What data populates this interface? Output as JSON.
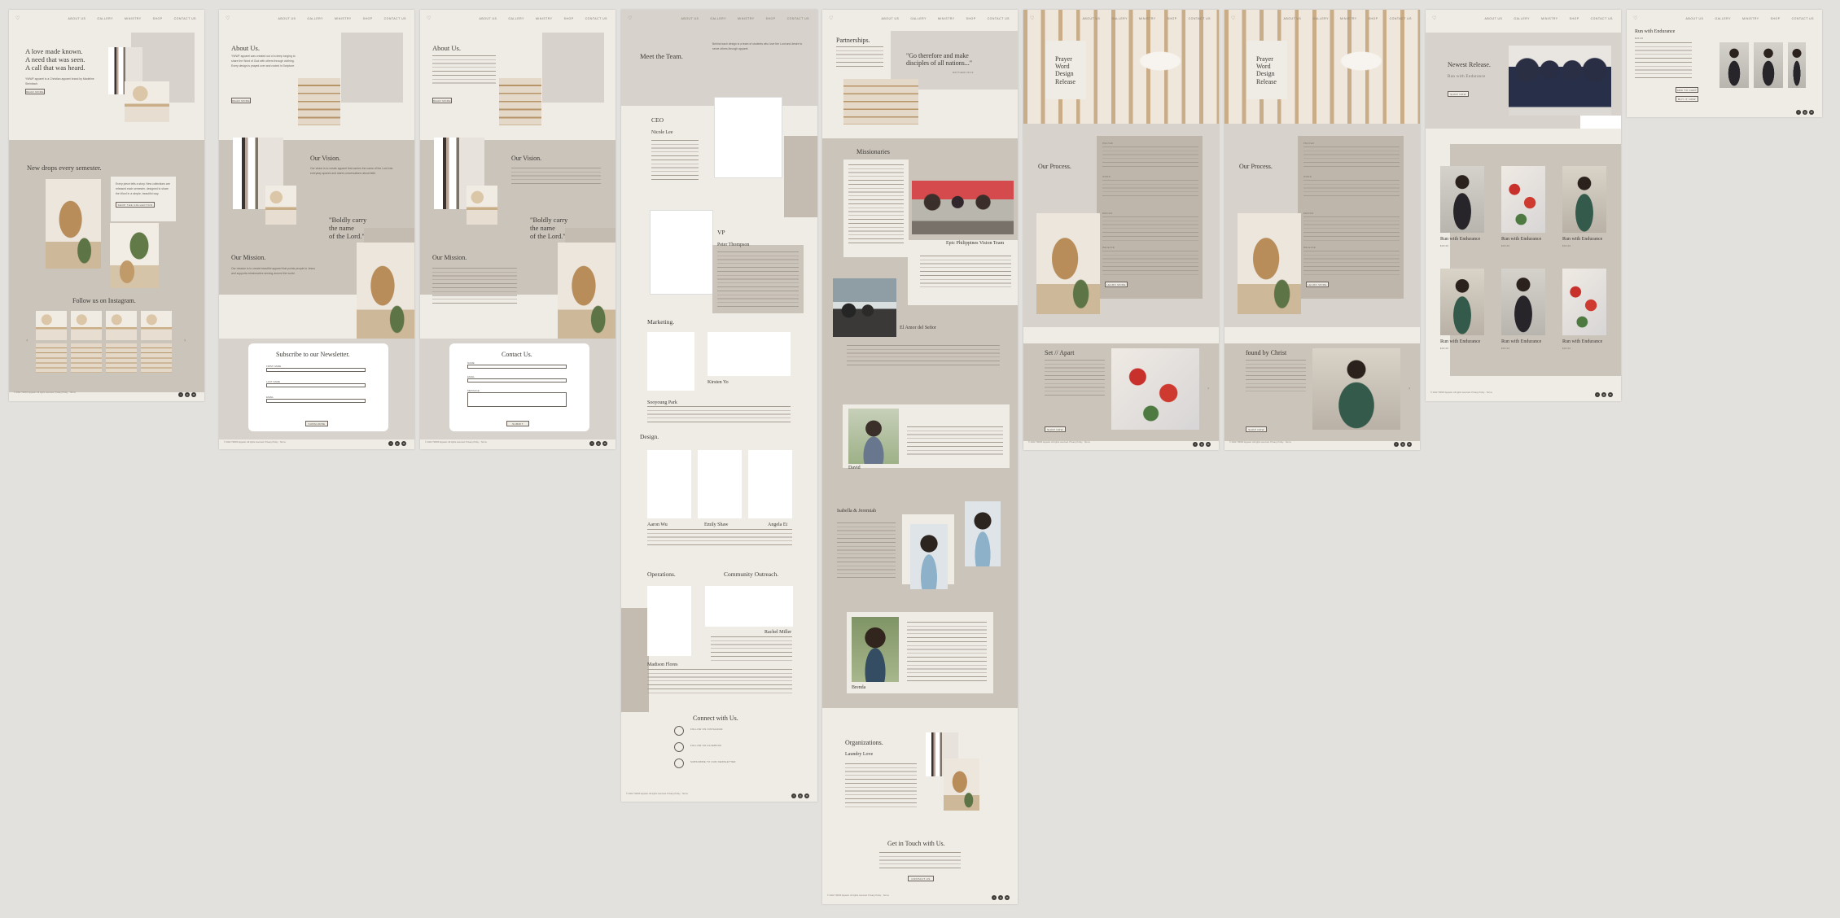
{
  "nav": {
    "logo": "♡",
    "items": [
      "ABOUT US",
      "GALLERY",
      "MINISTRY",
      "SHOP",
      "CONTACT US"
    ]
  },
  "pages": {
    "home": {
      "hero_title": "A love made known.\nA need that was seen.\nA call that was heard.",
      "hero_body": "YWWF apparel is a Christian apparel brand by Madeline Steinbach.",
      "hero_button": "READ MORE",
      "drops_title": "New drops every semester.",
      "drops_body": "Every piece tells a story. New collections are released each semester, designed to share the Word in a simple, beautiful way.",
      "drops_button": "SHOP THE COLLECTION",
      "instagram_title": "Follow us on Instagram."
    },
    "about": {
      "title": "About Us.",
      "body": "YWWF apparel was created out of a deep longing to share the Word of God with others through clothing. Every design is prayed over and rooted in Scripture.",
      "button": "READ MORE",
      "vision_title": "Our Vision.",
      "vision_body": "Our vision is to create apparel that carries the name of the Lord into everyday spaces and starts conversations about faith.",
      "quote": "\"Boldly carry\nthe name\nof the Lord.\"",
      "mission_title": "Our Mission.",
      "mission_body": "Our mission is to create beautiful apparel that points people to Jesus and supports missionaries serving around the world.",
      "newsletter_title": "Subscribe to our Newsletter.",
      "newsletter_fields": [
        "FIRST NAME",
        "LAST NAME",
        "EMAIL"
      ],
      "newsletter_button": "SUBSCRIBE"
    },
    "about_contact": {
      "title": "About Us.",
      "vision_title": "Our Vision.",
      "quote": "\"Boldly carry\nthe name\nof the Lord.\"",
      "mission_title": "Our Mission.",
      "contact_title": "Contact Us.",
      "contact_fields": [
        "NAME",
        "EMAIL",
        "MESSAGE"
      ],
      "contact_button": "SUBMIT"
    },
    "team": {
      "title": "Meet the Team.",
      "intro": "Behind each design is a team of students who love the Lord and desire to serve others through apparel.",
      "ceo_label": "CEO",
      "ceo_name": "Nicole Lee",
      "vp_label": "VP",
      "vp_name": "Peter Thompson",
      "marketing_label": "Marketing.",
      "marketing_names": [
        "Sooyoung Park",
        "Kirsten Yo"
      ],
      "design_label": "Design.",
      "design_names": [
        "Aaron Wu",
        "Emily Shaw",
        "Angela Ei"
      ],
      "operations_label": "Operations.",
      "outreach_label": "Community Outreach.",
      "ops_names": [
        "Madison Flores",
        "Rachel Miller"
      ],
      "connect_title": "Connect with Us.",
      "connect_items": [
        "FOLLOW ON INSTAGRAM",
        "FOLLOW ON FACEBOOK",
        "SUBSCRIBE TO OUR NEWSLETTER"
      ]
    },
    "partners": {
      "title": "Partnerships.",
      "quote": "\"Go therefore and make\ndisciples of all nations...\"",
      "quote_ref": "MATTHEW 28:19",
      "missionaries_title": "Missionaries",
      "team1": "Epic Philippines Vision Team",
      "team2": "El Amor del Señor",
      "person1": "David",
      "person2": "Isabella & Jeremiah",
      "person3": "Brenda",
      "orgs_title": "Organizations.",
      "org1": "Laundry Love",
      "touch_title": "Get in Touch with Us.",
      "touch_button": "CONTACT US"
    },
    "release1": {
      "title": "Prayer\nWord\nDesign\nRelease",
      "process_title": "Our Process.",
      "steps": [
        "PRAYER",
        "WORD",
        "DESIGN",
        "RELEASE"
      ],
      "button": "LEARN MORE",
      "feature_title": "Set // Apart",
      "feature_button": "SHOP NOW"
    },
    "release2": {
      "title": "Prayer\nWord\nDesign\nRelease",
      "process_title": "Our Process.",
      "button": "LEARN MORE",
      "feature_title": "found by Christ",
      "feature_button": "SHOP NOW"
    },
    "shop": {
      "title": "Newest Release.",
      "subtitle": "Run with Endurance",
      "button": "SHOP NOW",
      "product_name": "Run with Endurance",
      "price": "$30.00"
    },
    "product": {
      "title": "Run with Endurance",
      "price": "$30.00",
      "buttons": [
        "ADD TO CART",
        "BUY IT NOW"
      ]
    }
  },
  "social": [
    "f",
    "◎",
    "✉"
  ],
  "footer_text": "© 2022 YWWF Apparel. All rights reserved. Privacy Policy · Terms"
}
